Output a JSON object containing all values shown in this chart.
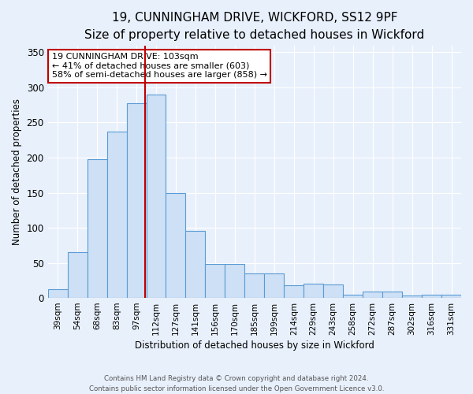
{
  "title": "19, CUNNINGHAM DRIVE, WICKFORD, SS12 9PF",
  "subtitle": "Size of property relative to detached houses in Wickford",
  "xlabel": "Distribution of detached houses by size in Wickford",
  "ylabel": "Number of detached properties",
  "categories": [
    "39sqm",
    "54sqm",
    "68sqm",
    "83sqm",
    "97sqm",
    "112sqm",
    "127sqm",
    "141sqm",
    "156sqm",
    "170sqm",
    "185sqm",
    "199sqm",
    "214sqm",
    "229sqm",
    "243sqm",
    "258sqm",
    "272sqm",
    "287sqm",
    "302sqm",
    "316sqm",
    "331sqm"
  ],
  "values": [
    12,
    65,
    198,
    237,
    278,
    290,
    150,
    96,
    48,
    48,
    35,
    35,
    18,
    20,
    19,
    5,
    9,
    9,
    4,
    5,
    5
  ],
  "bar_color": "#cde0f5",
  "bar_edge_color": "#5b9bd5",
  "vline_x": 4.43,
  "vline_color": "#c00000",
  "annotation_title": "19 CUNNINGHAM DRIVE: 103sqm",
  "annotation_line1": "← 41% of detached houses are smaller (603)",
  "annotation_line2": "58% of semi-detached houses are larger (858) →",
  "annotation_box_edge_color": "#c00000",
  "ylim": [
    0,
    360
  ],
  "yticks": [
    0,
    50,
    100,
    150,
    200,
    250,
    300,
    350
  ],
  "footer1": "Contains HM Land Registry data © Crown copyright and database right 2024.",
  "footer2": "Contains public sector information licensed under the Open Government Licence v3.0.",
  "bg_color": "#e8f0fb",
  "plot_bg_color": "#e8f0fb",
  "title_fontsize": 11,
  "subtitle_fontsize": 9,
  "annotation_fontsize": 8
}
